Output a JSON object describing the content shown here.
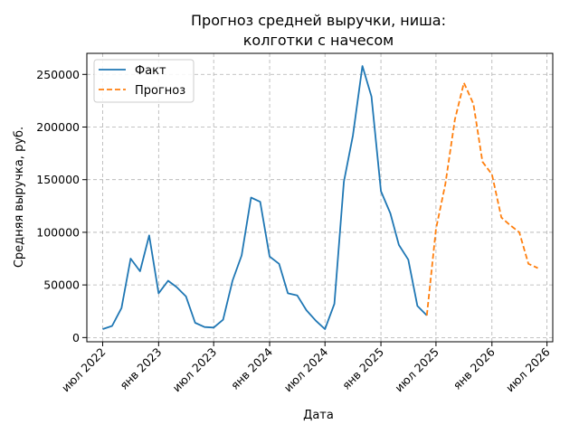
{
  "chart_data": {
    "type": "line",
    "title": [
      "Прогноз средней выручки, ниша:",
      "колготки с начесом"
    ],
    "xlabel": "Дата",
    "ylabel": "Средняя выручка, руб.",
    "xlim": [
      "2022-05-10",
      "2026-07-20"
    ],
    "ylim": [
      -4000,
      270000
    ],
    "grid": true,
    "legend_position": "top-left",
    "x_ticks": [
      {
        "date": "2022-07-01",
        "label": "июл 2022"
      },
      {
        "date": "2023-01-01",
        "label": "янв 2023"
      },
      {
        "date": "2023-07-01",
        "label": "июл 2023"
      },
      {
        "date": "2024-01-01",
        "label": "янв 2024"
      },
      {
        "date": "2024-07-01",
        "label": "июл 2024"
      },
      {
        "date": "2025-01-01",
        "label": "янв 2025"
      },
      {
        "date": "2025-07-01",
        "label": "июл 2025"
      },
      {
        "date": "2026-01-01",
        "label": "янв 2026"
      },
      {
        "date": "2026-07-01",
        "label": "июл 2026"
      }
    ],
    "y_ticks": [
      0,
      50000,
      100000,
      150000,
      200000,
      250000
    ],
    "series": [
      {
        "name": "Факт",
        "color": "#1f77b4",
        "style": "solid",
        "x": [
          "2022-07-01",
          "2022-08-01",
          "2022-09-01",
          "2022-10-01",
          "2022-11-01",
          "2022-12-01",
          "2023-01-01",
          "2023-02-01",
          "2023-03-01",
          "2023-04-01",
          "2023-05-01",
          "2023-06-01",
          "2023-07-01",
          "2023-08-01",
          "2023-09-01",
          "2023-10-01",
          "2023-11-01",
          "2023-12-01",
          "2024-01-01",
          "2024-02-01",
          "2024-03-01",
          "2024-04-01",
          "2024-05-01",
          "2024-06-01",
          "2024-07-01",
          "2024-08-01",
          "2024-09-01",
          "2024-10-01",
          "2024-11-01",
          "2024-12-01",
          "2025-01-01",
          "2025-02-01",
          "2025-03-01",
          "2025-04-01",
          "2025-05-01",
          "2025-06-01"
        ],
        "y": [
          8000,
          11000,
          28000,
          75000,
          63000,
          97000,
          42000,
          54000,
          48000,
          39000,
          14000,
          10000,
          9500,
          17000,
          54000,
          78000,
          133000,
          129000,
          77000,
          70000,
          42000,
          40000,
          26000,
          16000,
          8000,
          32000,
          148000,
          192000,
          258000,
          229000,
          139000,
          118000,
          88000,
          74000,
          30000,
          21000
        ]
      },
      {
        "name": "Прогноз",
        "color": "#ff7f0e",
        "style": "dashed",
        "x": [
          "2025-06-01",
          "2025-07-01",
          "2025-08-01",
          "2025-09-01",
          "2025-10-01",
          "2025-11-01",
          "2025-12-01",
          "2026-01-01",
          "2026-02-01",
          "2026-03-01",
          "2026-04-01",
          "2026-05-01",
          "2026-06-01"
        ],
        "y": [
          21000,
          103000,
          146000,
          207000,
          242000,
          222000,
          167000,
          155000,
          114000,
          107000,
          100000,
          70000,
          66000
        ]
      }
    ]
  }
}
